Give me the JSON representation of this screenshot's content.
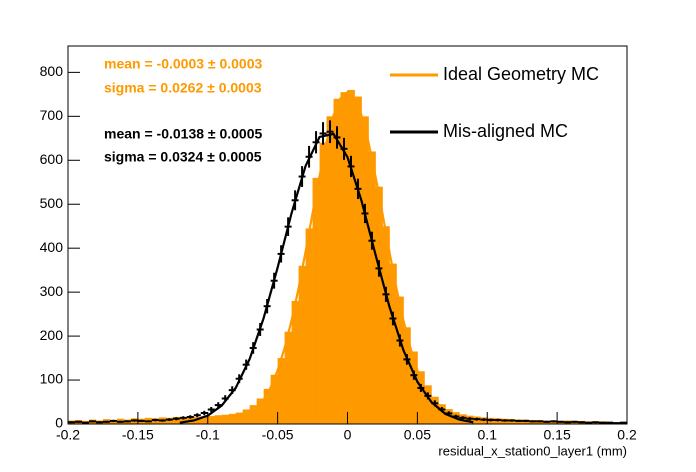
{
  "chart_data": {
    "type": "histogram",
    "xlabel": "residual_x_station0_layer1 (mm)",
    "xlim": [
      -0.2,
      0.2
    ],
    "ylim": [
      0,
      860
    ],
    "xticks": [
      -0.2,
      -0.15,
      -0.1,
      -0.05,
      0,
      0.05,
      0.1,
      0.15,
      0.2
    ],
    "yticks": [
      0,
      100,
      200,
      300,
      400,
      500,
      600,
      700,
      800
    ],
    "grid": false,
    "legend": "top-right",
    "annotations": [
      {
        "text": "mean = -0.0003 ± 0.0003",
        "color": "#ff9900"
      },
      {
        "text": "sigma = 0.0262 ± 0.0003",
        "color": "#ff9900"
      },
      {
        "text": "mean = -0.0138 ± 0.0005",
        "color": "#000000"
      },
      {
        "text": "sigma = 0.0324 ± 0.0005",
        "color": "#000000"
      }
    ],
    "series": [
      {
        "name": "Ideal Geometry MC",
        "color": "#ff9900",
        "bins": [
          -0.2,
          -0.195,
          -0.19,
          -0.185,
          -0.18,
          -0.175,
          -0.17,
          -0.165,
          -0.16,
          -0.155,
          -0.15,
          -0.145,
          -0.14,
          -0.135,
          -0.13,
          -0.125,
          -0.12,
          -0.115,
          -0.11,
          -0.105,
          -0.1,
          -0.095,
          -0.09,
          -0.085,
          -0.08,
          -0.075,
          -0.07,
          -0.065,
          -0.06,
          -0.055,
          -0.05,
          -0.045,
          -0.04,
          -0.035,
          -0.03,
          -0.025,
          -0.02,
          -0.015,
          -0.01,
          -0.005,
          0,
          0.005,
          0.01,
          0.015,
          0.02,
          0.025,
          0.03,
          0.035,
          0.04,
          0.045,
          0.05,
          0.055,
          0.06,
          0.065,
          0.07,
          0.075,
          0.08,
          0.085,
          0.09,
          0.095,
          0.1,
          0.105,
          0.11,
          0.115,
          0.12,
          0.125,
          0.13,
          0.135,
          0.14,
          0.145,
          0.15,
          0.155,
          0.16,
          0.165,
          0.17,
          0.175,
          0.18,
          0.185,
          0.19,
          0.195,
          0.2
        ],
        "values": [
          8,
          9,
          7,
          10,
          8,
          11,
          9,
          12,
          10,
          13,
          12,
          14,
          13,
          15,
          14,
          16,
          15,
          17,
          16,
          18,
          18,
          20,
          21,
          23,
          26,
          33,
          43,
          58,
          80,
          112,
          150,
          210,
          280,
          360,
          445,
          560,
          640,
          700,
          740,
          755,
          760,
          745,
          700,
          620,
          540,
          450,
          365,
          290,
          220,
          165,
          120,
          88,
          62,
          45,
          34,
          27,
          22,
          19,
          17,
          15,
          14,
          13,
          12,
          11,
          10,
          10,
          9,
          9,
          8,
          8,
          7,
          8,
          6,
          7,
          6,
          5,
          6,
          5,
          4,
          5
        ],
        "fit": {
          "x": [
            -0.08,
            -0.075,
            -0.07,
            -0.065,
            -0.06,
            -0.055,
            -0.05,
            -0.045,
            -0.04,
            -0.035,
            -0.03,
            -0.025,
            -0.02,
            -0.015,
            -0.01,
            -0.005,
            0,
            0.005,
            0.01,
            0.015,
            0.02,
            0.025,
            0.03,
            0.035,
            0.04,
            0.045,
            0.05,
            0.055,
            0.06,
            0.065,
            0.07,
            0.075,
            0.08
          ],
          "values": [
            7,
            12,
            21,
            35,
            55,
            83,
            122,
            173,
            236,
            309,
            392,
            479,
            564,
            641,
            702,
            741,
            755,
            741,
            702,
            641,
            564,
            479,
            392,
            309,
            236,
            173,
            122,
            83,
            55,
            35,
            21,
            12,
            7
          ]
        }
      },
      {
        "name": "Mis-aligned MC",
        "color": "#000000",
        "x": [
          -0.1975,
          -0.1925,
          -0.1875,
          -0.1825,
          -0.1775,
          -0.1725,
          -0.1675,
          -0.1625,
          -0.1575,
          -0.1525,
          -0.1475,
          -0.1425,
          -0.1375,
          -0.1325,
          -0.1275,
          -0.1225,
          -0.1175,
          -0.1125,
          -0.1075,
          -0.1025,
          -0.0975,
          -0.0925,
          -0.0875,
          -0.0825,
          -0.0775,
          -0.0725,
          -0.0675,
          -0.0625,
          -0.0575,
          -0.0525,
          -0.0475,
          -0.0425,
          -0.0375,
          -0.0325,
          -0.0275,
          -0.0225,
          -0.0175,
          -0.0125,
          -0.0075,
          -0.0025,
          0.0025,
          0.0075,
          0.0125,
          0.0175,
          0.0225,
          0.0275,
          0.0325,
          0.0375,
          0.0425,
          0.0475,
          0.0525,
          0.0575,
          0.0625,
          0.0675,
          0.0725,
          0.0775,
          0.0825,
          0.0875,
          0.0925,
          0.0975,
          0.1025,
          0.1075,
          0.1125,
          0.1175,
          0.1225,
          0.1275,
          0.1325,
          0.1375,
          0.1425,
          0.1475,
          0.1525,
          0.1575,
          0.1625,
          0.1675,
          0.1725,
          0.1775,
          0.1825,
          0.1875,
          0.1925,
          0.1975
        ],
        "values": [
          4,
          5,
          3,
          6,
          4,
          5,
          7,
          5,
          6,
          8,
          7,
          6,
          9,
          8,
          10,
          12,
          14,
          16,
          20,
          25,
          33,
          43,
          58,
          77,
          103,
          135,
          173,
          215,
          268,
          326,
          387,
          449,
          509,
          563,
          608,
          641,
          661,
          665,
          652,
          626,
          586,
          535,
          479,
          417,
          354,
          295,
          240,
          190,
          147,
          111,
          82,
          64,
          47,
          33,
          24,
          17,
          14,
          12,
          11,
          10,
          9,
          9,
          8,
          8,
          7,
          7,
          6,
          6,
          5,
          6,
          5,
          4,
          5,
          4,
          3,
          4,
          3,
          3,
          2,
          3
        ],
        "errors": [
          2,
          2.2,
          1.7,
          2.4,
          2,
          2.2,
          2.6,
          2.2,
          2.4,
          2.8,
          2.6,
          2.4,
          3,
          2.8,
          3.2,
          3.5,
          3.7,
          4,
          4.5,
          5,
          5.7,
          6.6,
          7.6,
          8.8,
          10.1,
          11.6,
          13.2,
          14.7,
          16.4,
          18.1,
          19.7,
          21.2,
          22.6,
          23.7,
          24.7,
          25.3,
          25.7,
          25.8,
          25.5,
          25,
          24.2,
          23.1,
          21.9,
          20.4,
          18.8,
          17.2,
          15.5,
          13.8,
          12.1,
          10.5,
          9.1,
          8,
          6.9,
          5.7,
          4.9,
          4.1,
          3.7,
          3.5,
          3.3,
          3.2,
          3,
          3,
          2.8,
          2.8,
          2.6,
          2.6,
          2.4,
          2.4,
          2.2,
          2.4,
          2.2,
          2,
          2.2,
          2,
          1.7,
          2,
          1.7,
          1.7,
          1.4,
          1.7
        ],
        "fit": {
          "x": [
            -0.12,
            -0.11,
            -0.1,
            -0.09,
            -0.08,
            -0.07,
            -0.06,
            -0.05,
            -0.04,
            -0.03,
            -0.02,
            -0.01,
            0,
            0.01,
            0.02,
            0.03,
            0.04,
            0.05,
            0.06,
            0.07,
            0.08,
            0.09
          ],
          "values": [
            3,
            8,
            19,
            42,
            82,
            148,
            241,
            356,
            480,
            587,
            653,
            660,
            607,
            508,
            386,
            267,
            168,
            96,
            50,
            23,
            10,
            4
          ]
        }
      }
    ]
  }
}
